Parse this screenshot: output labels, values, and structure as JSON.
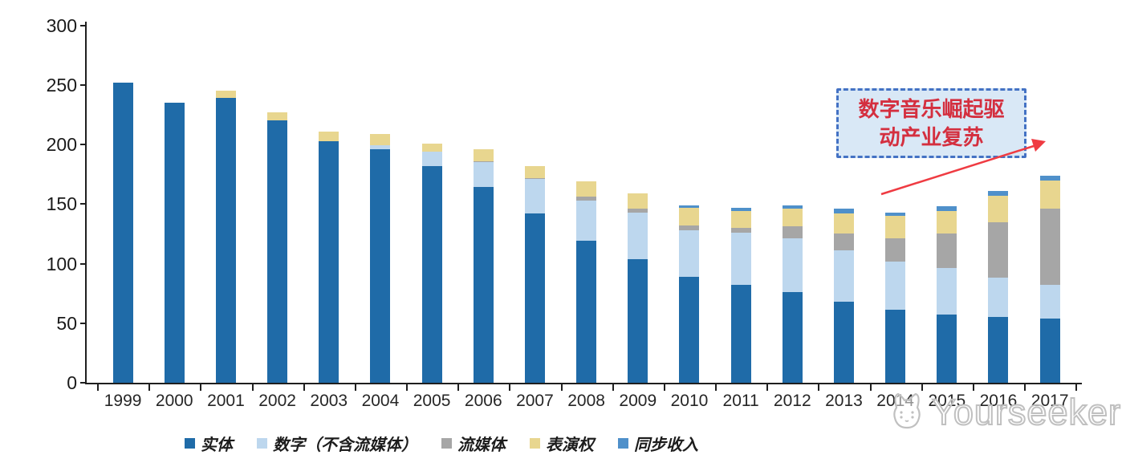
{
  "watermark": {
    "text": "Yourseeker"
  },
  "annotation": {
    "line1": "数字音乐崛起驱",
    "line2": "动产业复苏",
    "box_fill": "#d9e8f6",
    "box_border": "#4472c4",
    "text_color": "#d42f3f",
    "arrow_color": "#ef3b42"
  },
  "legend": {
    "items": [
      {
        "id": "physical",
        "label": "实体",
        "color": "#1f6ba8"
      },
      {
        "id": "digital",
        "label": "数字（不含流媒体）",
        "color": "#bdd7ee"
      },
      {
        "id": "streaming",
        "label": "流媒体",
        "color": "#a6a6a6"
      },
      {
        "id": "performance",
        "label": "表演权",
        "color": "#e8d68f"
      },
      {
        "id": "sync",
        "label": "同步收入",
        "color": "#4f90ca"
      }
    ],
    "position": "bottom-center"
  },
  "chart_data": {
    "type": "bar",
    "stacked": true,
    "title": "",
    "xlabel": "",
    "ylabel": "",
    "ylim": [
      0,
      300
    ],
    "yticks": [
      0,
      50,
      100,
      150,
      200,
      250,
      300
    ],
    "grid": false,
    "legend_position": "bottom",
    "categories": [
      "1999",
      "2000",
      "2001",
      "2002",
      "2003",
      "2004",
      "2005",
      "2006",
      "2007",
      "2008",
      "2009",
      "2010",
      "2011",
      "2012",
      "2013",
      "2014",
      "2015",
      "2016",
      "2017"
    ],
    "series": [
      {
        "name": "实体",
        "color": "#1f6ba8",
        "values": [
          252,
          235,
          239,
          220,
          203,
          196,
          182,
          164,
          142,
          119,
          104,
          89,
          82,
          76,
          68,
          61,
          57,
          55,
          54
        ]
      },
      {
        "name": "数字（不含流媒体）",
        "color": "#bdd7ee",
        "values": [
          0,
          0,
          0,
          0,
          0,
          3,
          12,
          21,
          29,
          34,
          39,
          39,
          44,
          45,
          43,
          41,
          39,
          33,
          28
        ]
      },
      {
        "name": "流媒体",
        "color": "#a6a6a6",
        "values": [
          0,
          0,
          0,
          0,
          0,
          0,
          0,
          1,
          1,
          3,
          3,
          4,
          4,
          10,
          14,
          19,
          29,
          47,
          64
        ]
      },
      {
        "name": "表演权",
        "color": "#e8d68f",
        "values": [
          0,
          0,
          6,
          7,
          8,
          10,
          7,
          10,
          10,
          13,
          13,
          15,
          14,
          15,
          17,
          19,
          19,
          22,
          24
        ]
      },
      {
        "name": "同步收入",
        "color": "#4f90ca",
        "values": [
          0,
          0,
          0,
          0,
          0,
          0,
          0,
          0,
          0,
          0,
          0,
          2,
          3,
          3,
          4,
          3,
          4,
          4,
          4
        ]
      }
    ],
    "totals": [
      252,
      235,
      245,
      227,
      211,
      209,
      201,
      196,
      182,
      169,
      159,
      149,
      147,
      149,
      146,
      143,
      148,
      161,
      174
    ],
    "annotation_text": "数字音乐崛起驱动产业复苏"
  }
}
